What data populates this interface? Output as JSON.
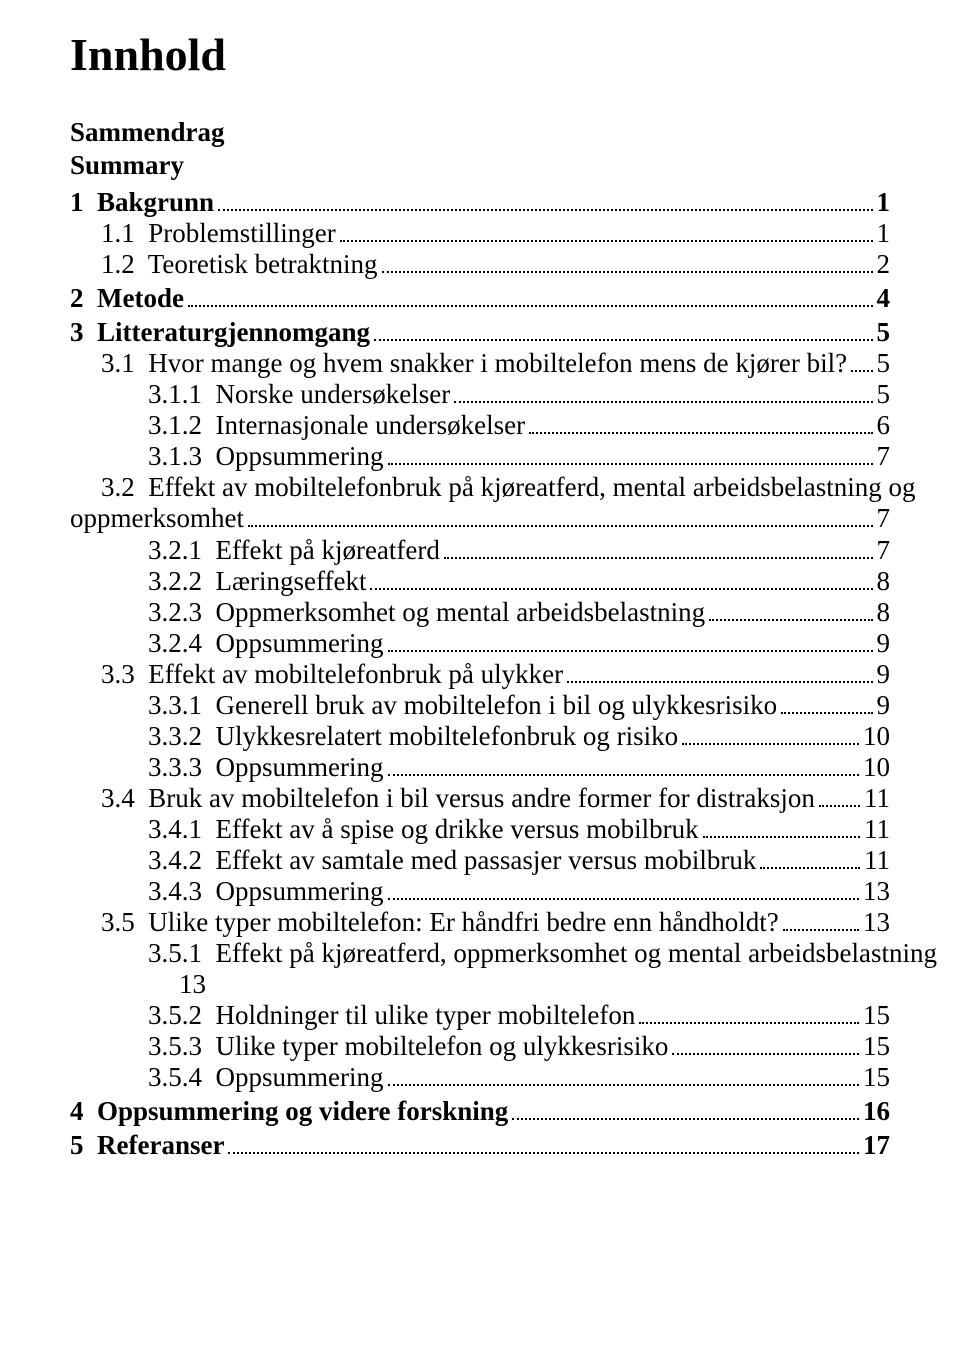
{
  "title": "Innhold",
  "preSections": [
    "Sammendrag",
    "Summary"
  ],
  "toc": [
    {
      "label": "1  Bakgrunn",
      "page": "1",
      "level": 0,
      "bold": true,
      "spacer": "big"
    },
    {
      "label": "1.1  Problemstillinger",
      "page": "1",
      "level": 1
    },
    {
      "label": "1.2  Teoretisk betraktning",
      "page": "2",
      "level": 1
    },
    {
      "label": "2  Metode",
      "page": "4",
      "level": 0,
      "bold": true,
      "spacer": "small"
    },
    {
      "label": "3  Litteraturgjennomgang",
      "page": "5",
      "level": 0,
      "bold": true,
      "spacer": "small"
    },
    {
      "label": "3.1  Hvor mange og hvem snakker i mobiltelefon mens de kjører bil?",
      "page": "5",
      "level": 1
    },
    {
      "label": "3.1.1  Norske undersøkelser",
      "page": "5",
      "level": 2
    },
    {
      "label": "3.1.2  Internasjonale undersøkelser",
      "page": "6",
      "level": 2
    },
    {
      "label": "3.1.3  Oppsummering",
      "page": "7",
      "level": 2
    },
    {
      "label": "3.2  Effekt av mobiltelefonbruk på kjøreatferd, mental arbeidsbelastning og",
      "page": null,
      "level": 1
    },
    {
      "label": "oppmerksomhet",
      "page": "7",
      "level": 0
    },
    {
      "label": "3.2.1  Effekt på kjøreatferd",
      "page": "7",
      "level": 2
    },
    {
      "label": "3.2.2  Læringseffekt",
      "page": "8",
      "level": 2
    },
    {
      "label": "3.2.3  Oppmerksomhet og mental arbeidsbelastning",
      "page": "8",
      "level": 2
    },
    {
      "label": "3.2.4  Oppsummering",
      "page": "9",
      "level": 2
    },
    {
      "label": "3.3  Effekt av mobiltelefonbruk på ulykker",
      "page": "9",
      "level": 1
    },
    {
      "label": "3.3.1  Generell bruk av mobiltelefon i bil og ulykkesrisiko",
      "page": "9",
      "level": 2
    },
    {
      "label": "3.3.2  Ulykkesrelatert mobiltelefonbruk og risiko",
      "page": "10",
      "level": 2
    },
    {
      "label": "3.3.3  Oppsummering",
      "page": "10",
      "level": 2
    },
    {
      "label": "3.4  Bruk av mobiltelefon i bil versus andre former for distraksjon",
      "page": "11",
      "level": 1
    },
    {
      "label": "3.4.1  Effekt av å spise og drikke versus mobilbruk",
      "page": "11",
      "level": 2
    },
    {
      "label": "3.4.2  Effekt av samtale med passasjer versus mobilbruk",
      "page": "11",
      "level": 2
    },
    {
      "label": "3.4.3  Oppsummering",
      "page": "13",
      "level": 2
    },
    {
      "label": "3.5  Ulike typer mobiltelefon: Er håndfri bedre enn håndholdt?",
      "page": "13",
      "level": 1
    },
    {
      "label": "3.5.1  Effekt på kjøreatferd, oppmerksomhet og mental arbeidsbelastning",
      "page": null,
      "level": 2
    },
    {
      "label": "13",
      "page": null,
      "level": "2b"
    },
    {
      "label": "3.5.2  Holdninger til ulike typer mobiltelefon",
      "page": "15",
      "level": 2
    },
    {
      "label": "3.5.3  Ulike typer mobiltelefon og ulykkesrisiko",
      "page": "15",
      "level": 2
    },
    {
      "label": "3.5.4  Oppsummering",
      "page": "15",
      "level": 2
    },
    {
      "label": "4  Oppsummering og videre forskning",
      "page": "16",
      "level": 0,
      "bold": true,
      "spacer": "small"
    },
    {
      "label": "5  Referanser",
      "page": "17",
      "level": 0,
      "bold": true,
      "spacer": "small"
    }
  ]
}
